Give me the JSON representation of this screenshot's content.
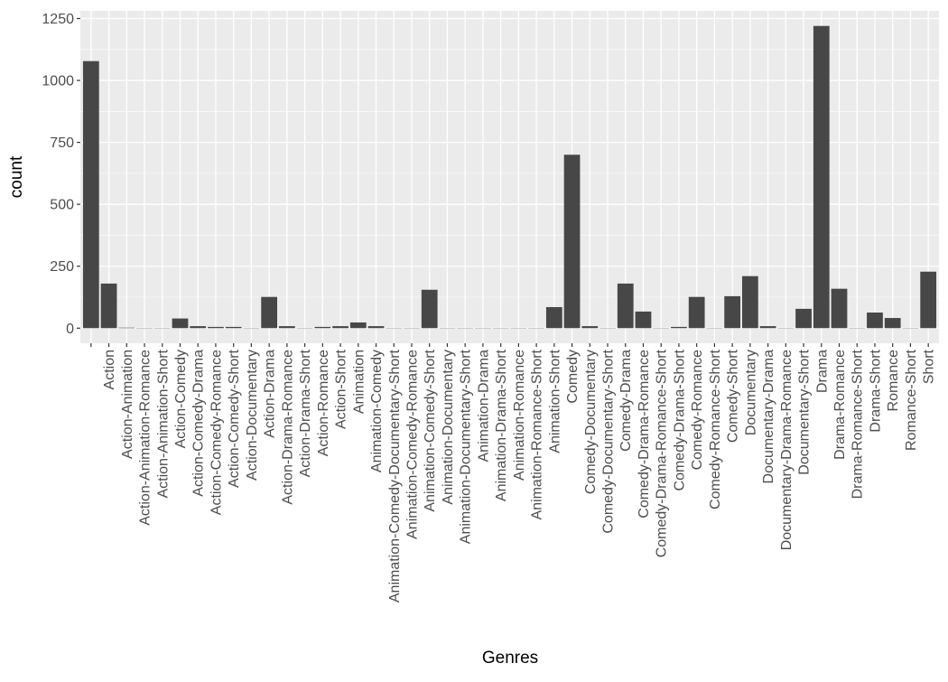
{
  "chart_data": {
    "type": "bar",
    "title": "",
    "xlabel": "Genres",
    "ylabel": "count",
    "ylim": [
      -61,
      1281
    ],
    "yticks": [
      0,
      250,
      500,
      750,
      1000,
      1250
    ],
    "grid": true,
    "legend": "none",
    "colors": {
      "bar": "#474747",
      "panel": "#EBEBEB",
      "grid": "#FFFFFF",
      "tick_text": "#4D4D4D",
      "axis_title": "#000000"
    },
    "categories": [
      "",
      "Action",
      "Action-Animation",
      "Action-Animation-Romance",
      "Action-Animation-Short",
      "Action-Comedy",
      "Action-Comedy-Drama",
      "Action-Comedy-Romance",
      "Action-Comedy-Short",
      "Action-Documentary",
      "Action-Drama",
      "Action-Drama-Romance",
      "Action-Drama-Short",
      "Action-Romance",
      "Action-Short",
      "Animation",
      "Animation-Comedy",
      "Animation-Comedy-Documentary-Short",
      "Animation-Comedy-Romance",
      "Animation-Comedy-Short",
      "Animation-Documentary",
      "Animation-Documentary-Short",
      "Animation-Drama",
      "Animation-Drama-Short",
      "Animation-Romance",
      "Animation-Romance-Short",
      "Animation-Short",
      "Comedy",
      "Comedy-Documentary",
      "Comedy-Documentary-Short",
      "Comedy-Drama",
      "Comedy-Drama-Romance",
      "Comedy-Drama-Romance-Short",
      "Comedy-Drama-Short",
      "Comedy-Romance",
      "Comedy-Romance-Short",
      "Comedy-Short",
      "Documentary",
      "Documentary-Drama",
      "Documentary-Drama-Romance",
      "Documentary-Short",
      "Drama",
      "Drama-Romance",
      "Drama-Romance-Short",
      "Drama-Short",
      "Romance",
      "Romance-Short",
      "Short"
    ],
    "values": [
      1078,
      180,
      2,
      1,
      1,
      39,
      8,
      5,
      5,
      1,
      126,
      8,
      1,
      5,
      8,
      23,
      8,
      1,
      1,
      155,
      1,
      1,
      1,
      1,
      1,
      1,
      85,
      700,
      8,
      1,
      180,
      67,
      1,
      5,
      126,
      1,
      129,
      210,
      8,
      1,
      78,
      1220,
      159,
      1,
      63,
      41,
      1,
      228
    ]
  }
}
